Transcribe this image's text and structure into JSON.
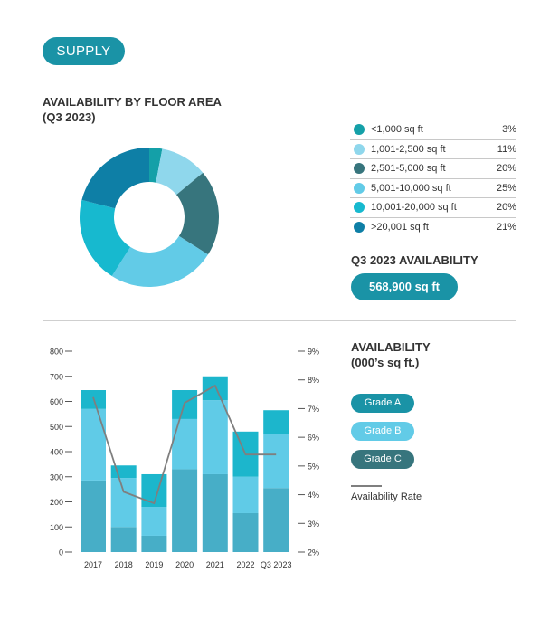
{
  "header": {
    "supply_label": "SUPPLY"
  },
  "floor_area": {
    "title_line1": "AVAILABILITY BY FLOOR AREA",
    "title_line2": "(Q3 2023)",
    "legend": [
      {
        "label": "<1,000 sq ft",
        "value": "3%",
        "color": "#14a0a8"
      },
      {
        "label": "1,001-2,500 sq ft",
        "value": "11%",
        "color": "#8fd7ec"
      },
      {
        "label": "2,501-5,000 sq ft",
        "value": "20%",
        "color": "#37757d"
      },
      {
        "label": "5,001-10,000 sq ft",
        "value": "25%",
        "color": "#62cbe7"
      },
      {
        "label": "10,001-20,000 sq ft",
        "value": "20%",
        "color": "#17b9cf"
      },
      {
        "label": ">20,001 sq ft",
        "value": "21%",
        "color": "#0e7fa6"
      }
    ]
  },
  "q3_availability": {
    "title": "Q3 2023 AVAILABILITY",
    "value": "568,900 sq ft"
  },
  "availability_chart": {
    "title_line1": "AVAILABILITY",
    "title_line2": "(000’s sq ft.)",
    "legend": [
      {
        "label": "Grade A",
        "color": "#1a93a6"
      },
      {
        "label": "Grade B",
        "color": "#62cbe7"
      },
      {
        "label": "Grade C",
        "color": "#37757d"
      }
    ],
    "rate_label": "Availability Rate"
  },
  "chart_data": [
    {
      "type": "pie",
      "title": "AVAILABILITY BY FLOOR AREA (Q3 2023)",
      "categories": [
        "<1,000 sq ft",
        "1,001-2,500 sq ft",
        "2,501-5,000 sq ft",
        "5,001-10,000 sq ft",
        "10,001-20,000 sq ft",
        ">20,001 sq ft"
      ],
      "values": [
        3,
        11,
        20,
        25,
        20,
        21
      ],
      "colors": [
        "#14a0a8",
        "#8fd7ec",
        "#37757d",
        "#62cbe7",
        "#17b9cf",
        "#0e7fa6"
      ],
      "donut": true
    },
    {
      "type": "bar",
      "stacked": true,
      "title": "AVAILABILITY (000’s sq ft.)",
      "categories": [
        "2017",
        "2018",
        "2019",
        "2020",
        "2021",
        "2022",
        "Q3  2023"
      ],
      "series": [
        {
          "name": "Grade A",
          "values": [
            285,
            100,
            65,
            330,
            310,
            155,
            255
          ],
          "color": "#47aec7"
        },
        {
          "name": "Grade B",
          "values": [
            285,
            195,
            115,
            200,
            295,
            145,
            215
          ],
          "color": "#60cbe7"
        },
        {
          "name": "Grade C",
          "values": [
            75,
            50,
            130,
            115,
            95,
            180,
            95
          ],
          "color": "#1cb6cc"
        }
      ],
      "line_series": {
        "name": "Availability Rate",
        "values": [
          7.4,
          4.1,
          3.7,
          7.2,
          7.8,
          5.4,
          5.4
        ],
        "color": "#7f7f7f"
      },
      "ylim": [
        0,
        800
      ],
      "yticks": [
        "0",
        "100",
        "200",
        "300",
        "400",
        "500",
        "600",
        "700",
        "800"
      ],
      "y2lim": [
        2,
        9
      ],
      "y2ticks": [
        "2%",
        "3%",
        "4%",
        "5%",
        "6%",
        "7%",
        "8%",
        "9%"
      ],
      "legend": "right"
    }
  ]
}
